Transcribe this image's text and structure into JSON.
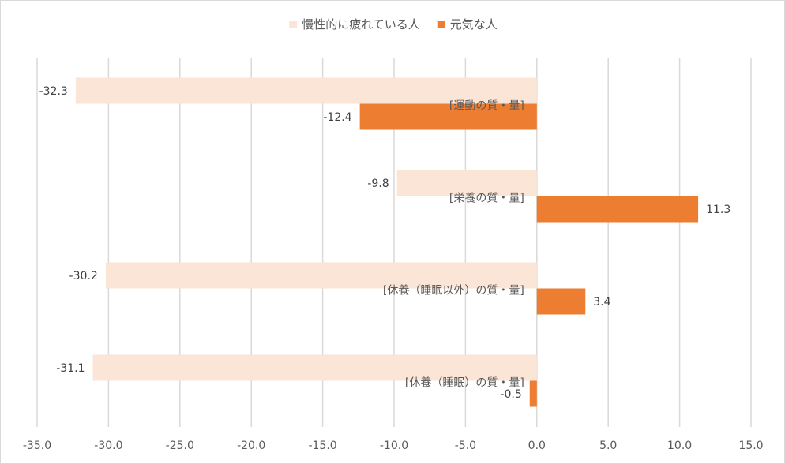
{
  "colors": {
    "series_fatigued": "#fbe5d6",
    "series_energetic": "#ed7d31",
    "grid": "#d9d9d9",
    "text": "#595959"
  },
  "chart_data": {
    "type": "bar",
    "orientation": "horizontal",
    "title": "",
    "xlabel": "",
    "ylabel": "",
    "xlim": [
      -35,
      15
    ],
    "x_ticks": [
      -35,
      -30,
      -25,
      -20,
      -15,
      -10,
      -5,
      0,
      5,
      10,
      15
    ],
    "x_tick_labels": [
      "-35.0",
      "-30.0",
      "-25.0",
      "-20.0",
      "-15.0",
      "-10.0",
      "-5.0",
      "0.0",
      "5.0",
      "10.0",
      "15.0"
    ],
    "grid": "vertical",
    "legend_position": "top",
    "categories": [
      "[運動の質・量]",
      "[栄養の質・量]",
      "[休養（睡眠以外）の質・量]",
      "[休養（睡眠）の質・量]"
    ],
    "series": [
      {
        "name": "慢性的に疲れている人",
        "color": "#fbe5d6",
        "values": [
          -32.3,
          -9.8,
          -30.2,
          -31.1
        ],
        "labels": [
          "-32.3",
          "-9.8",
          "-30.2",
          "-31.1"
        ]
      },
      {
        "name": "元気な人",
        "color": "#ed7d31",
        "values": [
          -12.4,
          11.3,
          3.4,
          -0.5
        ],
        "labels": [
          "-12.4",
          "11.3",
          "3.4",
          "-0.5"
        ]
      }
    ]
  }
}
